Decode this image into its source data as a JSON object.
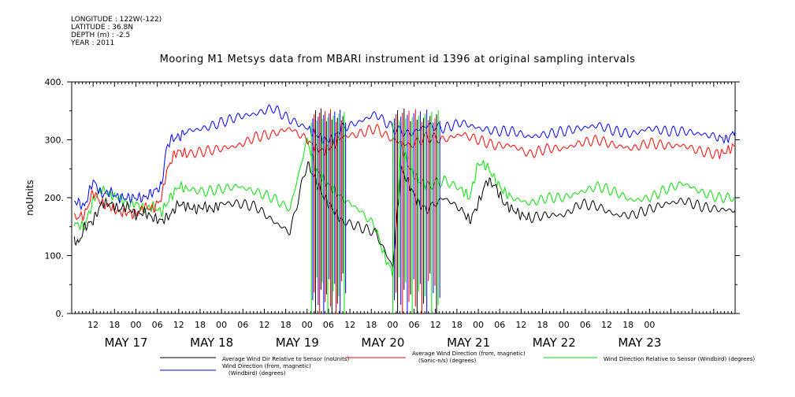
{
  "header": {
    "longitude": "LONGITUDE : 122W(-122)",
    "latitude": "LATITUDE : 36.8N",
    "depth": "DEPTH (m) : -2.5",
    "year": "YEAR : 2011"
  },
  "chart_data": {
    "type": "line",
    "title": "Mooring M1 Metsys data from MBARI instrument id 1396 at original sampling intervals",
    "ylabel": "noUnits",
    "xlabel": "",
    "ylim": [
      0,
      400
    ],
    "yticks": [
      0,
      100,
      200,
      300,
      400
    ],
    "yticklabels": [
      "0.",
      "100.",
      "200.",
      "300.",
      "400."
    ],
    "xlim_hours_label": "MAY 16 06:00 to MAY 24 00:00",
    "x_tick_labels": [
      "12",
      "18",
      "00",
      "06",
      "12",
      "18",
      "00",
      "06",
      "12",
      "18",
      "00",
      "06",
      "12",
      "18",
      "00",
      "06",
      "12",
      "18",
      "00",
      "06",
      "12",
      "18",
      "00",
      "06",
      "12",
      "18",
      "00"
    ],
    "day_labels": [
      "MAY 17",
      "MAY 18",
      "MAY 19",
      "MAY 20",
      "MAY 21",
      "MAY 22",
      "MAY 23"
    ],
    "grid": false,
    "legend_placement": "bottom",
    "series": [
      {
        "name": "Average Wind Dir Relative to Sensor (noUnits)",
        "color": "#000000",
        "x_day": [
          16.28,
          16.33,
          16.4,
          16.5,
          16.6,
          16.7,
          16.8,
          16.9,
          17.0,
          17.1,
          17.2,
          17.3,
          17.4,
          17.5,
          17.6,
          17.7,
          17.8,
          17.9,
          18.0,
          18.2,
          18.4,
          18.6,
          18.8,
          19.0,
          19.1,
          19.2,
          19.3,
          19.4,
          19.6,
          19.8,
          20.0,
          20.1,
          20.2,
          20.3,
          20.4,
          20.6,
          20.8,
          20.9,
          21.0,
          21.1,
          21.2,
          21.3,
          21.4,
          21.5,
          21.6,
          21.8,
          22.0,
          22.2,
          22.4,
          22.6,
          22.8,
          23.0,
          23.2,
          23.4,
          23.6,
          23.8,
          24.0
        ],
        "values": [
          130,
          120,
          150,
          160,
          190,
          190,
          180,
          185,
          170,
          175,
          165,
          160,
          170,
          190,
          185,
          180,
          185,
          180,
          190,
          190,
          185,
          160,
          140,
          260,
          230,
          200,
          180,
          160,
          150,
          140,
          80,
          250,
          220,
          190,
          180,
          200,
          180,
          160,
          190,
          230,
          220,
          190,
          180,
          170,
          165,
          170,
          170,
          190,
          185,
          170,
          170,
          180,
          190,
          195,
          185,
          180,
          178
        ]
      },
      {
        "name": "Average Wind Direction (from, magnetic) (Sonic-n/s) (degrees)",
        "color": "#ff0000",
        "x_day": [
          16.28,
          16.4,
          16.5,
          16.6,
          16.7,
          16.8,
          16.9,
          17.0,
          17.1,
          17.2,
          17.3,
          17.35,
          17.4,
          17.45,
          17.5,
          17.6,
          17.8,
          18.0,
          18.2,
          18.4,
          18.6,
          18.8,
          19.0,
          19.1,
          19.2,
          19.3,
          19.4,
          19.6,
          19.8,
          20.0,
          20.2,
          20.4,
          20.6,
          20.8,
          21.0,
          21.2,
          21.4,
          21.6,
          21.8,
          22.0,
          22.2,
          22.4,
          22.6,
          22.8,
          23.0,
          23.2,
          23.4,
          23.6,
          23.8,
          23.9,
          24.0
        ],
        "values": [
          165,
          170,
          210,
          190,
          185,
          175,
          175,
          170,
          185,
          180,
          200,
          240,
          260,
          275,
          280,
          275,
          280,
          285,
          290,
          305,
          310,
          320,
          300,
          285,
          280,
          290,
          305,
          310,
          320,
          300,
          290,
          305,
          300,
          310,
          300,
          290,
          290,
          275,
          285,
          285,
          295,
          300,
          290,
          285,
          295,
          290,
          290,
          280,
          275,
          280,
          290
        ]
      },
      {
        "name": "Wind Direction Relative to Sensor (Windbird) (degrees)",
        "color": "#00e000",
        "x_day": [
          16.28,
          16.4,
          16.5,
          16.6,
          16.7,
          16.8,
          16.9,
          17.0,
          17.1,
          17.2,
          17.3,
          17.4,
          17.5,
          17.6,
          17.8,
          18.0,
          18.2,
          18.4,
          18.6,
          18.8,
          19.0,
          19.1,
          19.2,
          19.3,
          19.4,
          19.6,
          19.8,
          19.9,
          20.0,
          20.1,
          20.2,
          20.3,
          20.4,
          20.6,
          20.8,
          20.9,
          21.0,
          21.1,
          21.2,
          21.3,
          21.4,
          21.6,
          21.8,
          22.0,
          22.2,
          22.4,
          22.6,
          22.8,
          23.0,
          23.2,
          23.4,
          23.6,
          23.8,
          24.0
        ],
        "values": [
          155,
          150,
          195,
          215,
          205,
          200,
          190,
          190,
          180,
          185,
          175,
          200,
          220,
          215,
          210,
          215,
          220,
          210,
          200,
          180,
          300,
          250,
          230,
          215,
          200,
          180,
          150,
          100,
          70,
          290,
          250,
          230,
          220,
          230,
          215,
          200,
          260,
          255,
          230,
          210,
          200,
          190,
          200,
          200,
          210,
          220,
          210,
          195,
          200,
          215,
          225,
          210,
          200,
          200
        ]
      },
      {
        "name": "Wind Direction (from, magnetic) (Windbird) (degrees)",
        "color": "#0000ff",
        "x_day": [
          16.28,
          16.4,
          16.5,
          16.6,
          16.7,
          16.8,
          16.9,
          17.0,
          17.1,
          17.2,
          17.3,
          17.35,
          17.4,
          17.5,
          17.6,
          17.8,
          18.0,
          18.2,
          18.4,
          18.6,
          18.8,
          19.0,
          19.1,
          19.2,
          19.3,
          19.4,
          19.6,
          19.8,
          20.0,
          20.2,
          20.4,
          20.6,
          20.8,
          21.0,
          21.2,
          21.4,
          21.6,
          21.8,
          22.0,
          22.2,
          22.4,
          22.6,
          22.8,
          23.0,
          23.2,
          23.4,
          23.6,
          23.8,
          23.9,
          24.0
        ],
        "values": [
          195,
          185,
          230,
          205,
          210,
          200,
          200,
          200,
          200,
          210,
          220,
          280,
          300,
          305,
          315,
          320,
          330,
          340,
          345,
          355,
          335,
          320,
          310,
          300,
          300,
          320,
          330,
          345,
          320,
          310,
          325,
          320,
          330,
          320,
          315,
          315,
          305,
          310,
          315,
          320,
          325,
          315,
          310,
          320,
          315,
          315,
          310,
          305,
          300,
          315
        ]
      }
    ]
  },
  "legend": {
    "items": [
      {
        "label": "Average Wind Dir Relative to Sensor (noUnits)",
        "color": "#000000"
      },
      {
        "label": "Average Wind Direction (from, magnetic) (Sonic-n/s) (degrees)",
        "color": "#ff0000"
      },
      {
        "label": "Wind Direction Relative to Sensor (Windbird) (degrees)",
        "color": "#00e000"
      },
      {
        "label": "Wind Direction (from, magnetic) (Windbird) (degrees)",
        "color": "#0000ff"
      }
    ]
  }
}
